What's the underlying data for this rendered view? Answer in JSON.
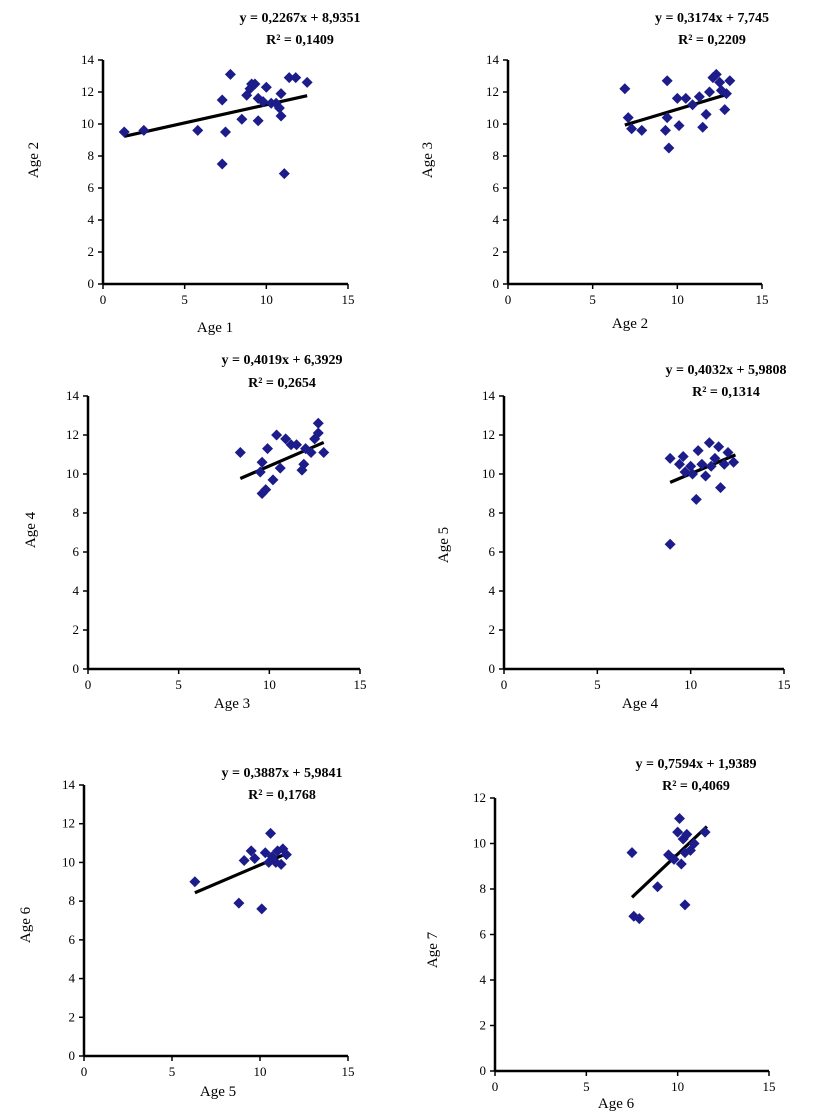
{
  "chart_data": [
    {
      "type": "scatter",
      "xlabel": "Age 1",
      "ylabel": "Age 2",
      "equation": "y = 0,2267x + 8,9351",
      "r2": "R² = 0,1409",
      "xlim": [
        0,
        15
      ],
      "ylim": [
        0,
        14
      ],
      "xticks": [
        0,
        5,
        10,
        15
      ],
      "yticks": [
        0,
        2,
        4,
        6,
        8,
        10,
        12,
        14
      ],
      "trendline": {
        "slope": 0.2267,
        "intercept": 8.9351,
        "x_range": [
          1.3,
          12.5
        ]
      },
      "color": "#1c1c8a",
      "points": [
        [
          1.3,
          9.5
        ],
        [
          2.5,
          9.6
        ],
        [
          5.8,
          9.6
        ],
        [
          7.3,
          11.5
        ],
        [
          7.3,
          7.5
        ],
        [
          7.5,
          9.5
        ],
        [
          7.8,
          13.1
        ],
        [
          8.5,
          10.3
        ],
        [
          8.8,
          11.8
        ],
        [
          9.0,
          12.2
        ],
        [
          9.1,
          12.5
        ],
        [
          9.3,
          12.5
        ],
        [
          9.5,
          11.6
        ],
        [
          9.5,
          10.2
        ],
        [
          9.8,
          11.4
        ],
        [
          10.0,
          12.3
        ],
        [
          10.3,
          11.3
        ],
        [
          10.6,
          11.3
        ],
        [
          10.8,
          11.0
        ],
        [
          10.9,
          11.9
        ],
        [
          10.9,
          10.5
        ],
        [
          11.1,
          6.9
        ],
        [
          11.4,
          12.9
        ],
        [
          11.8,
          12.9
        ],
        [
          12.5,
          12.6
        ]
      ]
    },
    {
      "type": "scatter",
      "xlabel": "Age 2",
      "ylabel": "Age 3",
      "equation": "y = 0,3174x + 7,745",
      "r2": "R² = 0,2209",
      "xlim": [
        0,
        15
      ],
      "ylim": [
        0,
        14
      ],
      "xticks": [
        0,
        5,
        10,
        15
      ],
      "yticks": [
        0,
        2,
        4,
        6,
        8,
        10,
        12,
        14
      ],
      "trendline": {
        "slope": 0.3174,
        "intercept": 7.745,
        "x_range": [
          6.9,
          13.1
        ]
      },
      "color": "#1c1c8a",
      "points": [
        [
          6.9,
          12.2
        ],
        [
          7.1,
          10.4
        ],
        [
          7.3,
          9.7
        ],
        [
          7.9,
          9.6
        ],
        [
          9.4,
          12.7
        ],
        [
          9.4,
          10.4
        ],
        [
          9.3,
          9.6
        ],
        [
          9.5,
          8.5
        ],
        [
          10.0,
          11.6
        ],
        [
          10.1,
          9.9
        ],
        [
          10.5,
          11.6
        ],
        [
          10.9,
          11.2
        ],
        [
          11.3,
          11.7
        ],
        [
          11.5,
          9.8
        ],
        [
          11.7,
          10.6
        ],
        [
          11.9,
          12.0
        ],
        [
          12.1,
          12.9
        ],
        [
          12.3,
          13.1
        ],
        [
          12.5,
          12.6
        ],
        [
          12.6,
          12.1
        ],
        [
          12.8,
          10.9
        ],
        [
          12.9,
          11.9
        ],
        [
          13.1,
          12.7
        ]
      ]
    },
    {
      "type": "scatter",
      "xlabel": "Age 3",
      "ylabel": "Age 4",
      "equation": "y = 0,4019x + 6,3929",
      "r2": "R² = 0,2654",
      "xlim": [
        0,
        15
      ],
      "ylim": [
        0,
        14
      ],
      "xticks": [
        0,
        5,
        10,
        15
      ],
      "yticks": [
        0,
        2,
        4,
        6,
        8,
        10,
        12,
        14
      ],
      "trendline": {
        "slope": 0.4019,
        "intercept": 6.3929,
        "x_range": [
          8.4,
          13.0
        ]
      },
      "color": "#1c1c8a",
      "points": [
        [
          8.4,
          11.1
        ],
        [
          9.5,
          10.1
        ],
        [
          9.6,
          9.0
        ],
        [
          9.6,
          10.6
        ],
        [
          9.8,
          9.2
        ],
        [
          9.9,
          11.3
        ],
        [
          10.2,
          9.7
        ],
        [
          10.4,
          12.0
        ],
        [
          10.6,
          10.3
        ],
        [
          10.9,
          11.8
        ],
        [
          11.2,
          11.5
        ],
        [
          11.5,
          11.5
        ],
        [
          11.8,
          10.2
        ],
        [
          11.9,
          10.5
        ],
        [
          12.0,
          11.3
        ],
        [
          12.3,
          11.1
        ],
        [
          12.5,
          11.8
        ],
        [
          12.7,
          12.6
        ],
        [
          12.7,
          12.1
        ],
        [
          13.0,
          11.1
        ]
      ]
    },
    {
      "type": "scatter",
      "xlabel": "Age 4",
      "ylabel": "Age 5",
      "equation": "y = 0,4032x + 5,9808",
      "r2": "R² = 0,1314",
      "xlim": [
        0,
        15
      ],
      "ylim": [
        0,
        14
      ],
      "xticks": [
        0,
        5,
        10,
        15
      ],
      "yticks": [
        0,
        2,
        4,
        6,
        8,
        10,
        12,
        14
      ],
      "trendline": {
        "slope": 0.4032,
        "intercept": 5.9808,
        "x_range": [
          8.9,
          12.4
        ]
      },
      "color": "#1c1c8a",
      "points": [
        [
          8.9,
          6.4
        ],
        [
          8.9,
          10.8
        ],
        [
          9.4,
          10.5
        ],
        [
          9.6,
          10.9
        ],
        [
          9.7,
          10.1
        ],
        [
          10.0,
          10.4
        ],
        [
          10.1,
          10.0
        ],
        [
          10.3,
          8.7
        ],
        [
          10.4,
          11.2
        ],
        [
          10.6,
          10.5
        ],
        [
          10.8,
          9.9
        ],
        [
          11.0,
          11.6
        ],
        [
          11.1,
          10.4
        ],
        [
          11.3,
          10.8
        ],
        [
          11.5,
          11.4
        ],
        [
          11.6,
          9.3
        ],
        [
          11.8,
          10.5
        ],
        [
          12.0,
          11.1
        ],
        [
          12.3,
          10.6
        ]
      ]
    },
    {
      "type": "scatter",
      "xlabel": "Age 5",
      "ylabel": "Age 6",
      "equation": "y = 0,3887x + 5,9841",
      "r2": "R² = 0,1768",
      "xlim": [
        0,
        15
      ],
      "ylim": [
        0,
        14
      ],
      "xticks": [
        0,
        5,
        10,
        15
      ],
      "yticks": [
        0,
        2,
        4,
        6,
        8,
        10,
        12,
        14
      ],
      "trendline": {
        "slope": 0.3887,
        "intercept": 5.9841,
        "x_range": [
          6.3,
          11.6
        ]
      },
      "color": "#1c1c8a",
      "points": [
        [
          6.3,
          9.0
        ],
        [
          8.8,
          7.9
        ],
        [
          9.1,
          10.1
        ],
        [
          9.5,
          10.6
        ],
        [
          9.7,
          10.2
        ],
        [
          10.1,
          7.6
        ],
        [
          10.3,
          10.5
        ],
        [
          10.5,
          10.0
        ],
        [
          10.6,
          11.5
        ],
        [
          10.7,
          10.3
        ],
        [
          10.9,
          10.0
        ],
        [
          11.0,
          10.6
        ],
        [
          11.2,
          9.9
        ],
        [
          11.3,
          10.7
        ],
        [
          11.5,
          10.4
        ]
      ]
    },
    {
      "type": "scatter",
      "xlabel": "Age 6",
      "ylabel": "Age 7",
      "equation": "y = 0,7594x + 1,9389",
      "r2": "R² = 0,4069",
      "xlim": [
        0,
        15
      ],
      "ylim": [
        0,
        12
      ],
      "xticks": [
        0,
        5,
        10,
        15
      ],
      "yticks": [
        0,
        2,
        4,
        6,
        8,
        10,
        12
      ],
      "trendline": {
        "slope": 0.7594,
        "intercept": 1.9389,
        "x_range": [
          7.5,
          11.6
        ]
      },
      "color": "#1c1c8a",
      "points": [
        [
          7.5,
          9.6
        ],
        [
          7.6,
          6.8
        ],
        [
          7.9,
          6.7
        ],
        [
          8.9,
          8.1
        ],
        [
          9.5,
          9.5
        ],
        [
          9.8,
          9.3
        ],
        [
          10.0,
          10.5
        ],
        [
          10.1,
          11.1
        ],
        [
          10.2,
          9.1
        ],
        [
          10.3,
          10.2
        ],
        [
          10.4,
          7.3
        ],
        [
          10.4,
          9.6
        ],
        [
          10.5,
          10.4
        ],
        [
          10.7,
          9.7
        ],
        [
          10.9,
          10.0
        ],
        [
          11.5,
          10.5
        ]
      ]
    }
  ]
}
